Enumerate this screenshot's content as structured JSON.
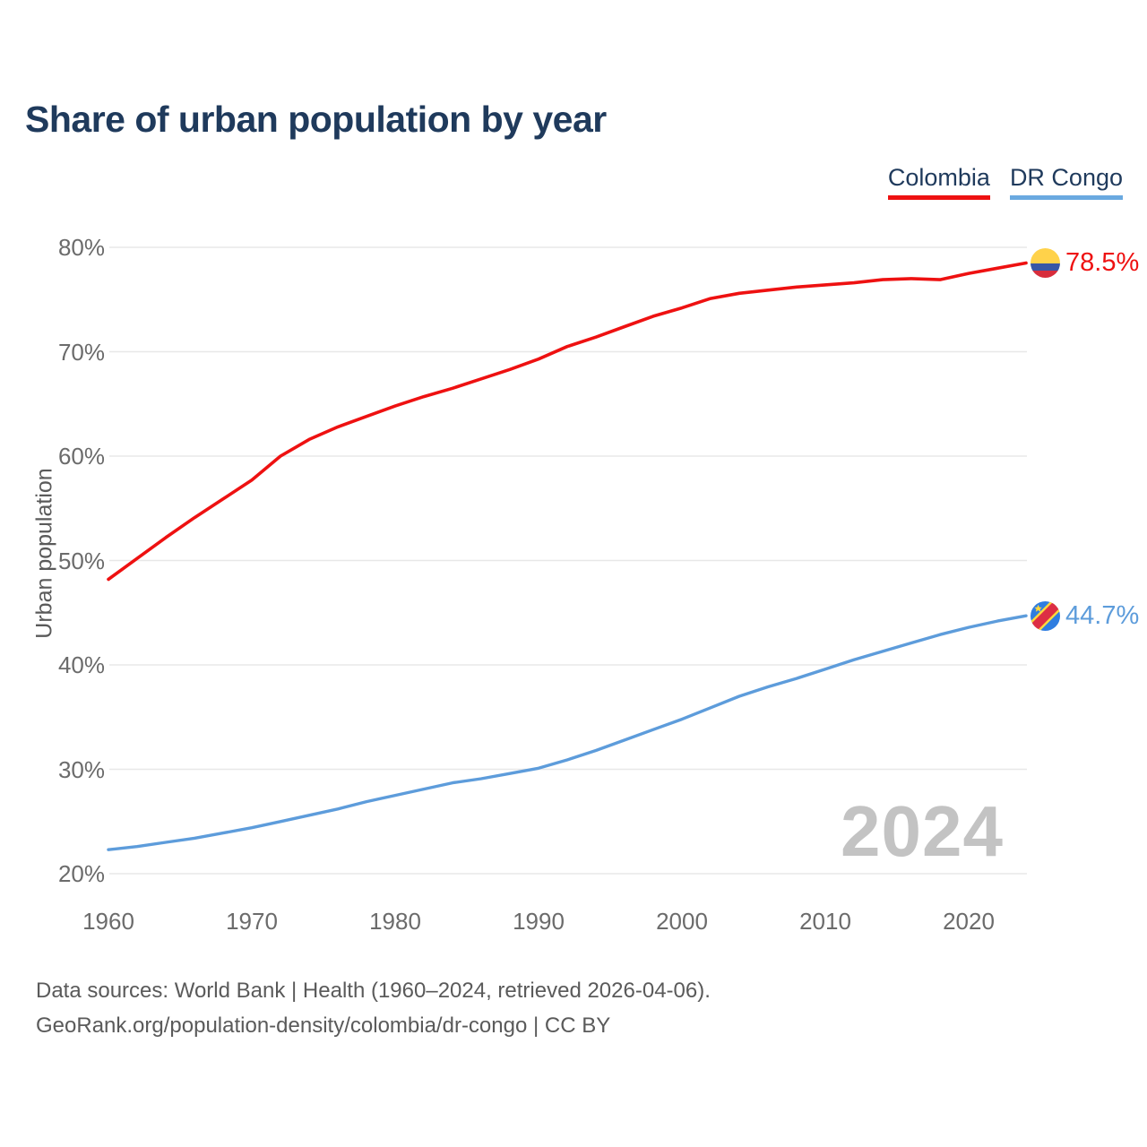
{
  "title": "Share of urban population by year",
  "ylabel": "Urban population",
  "watermark": "2024",
  "legend": [
    {
      "label": "Colombia",
      "color": "#ee1111"
    },
    {
      "label": "DR Congo",
      "color": "#6aa9e0"
    }
  ],
  "end_labels": {
    "colombia": "78.5%",
    "dr_congo": "44.7%"
  },
  "footer": {
    "line1": "Data sources: World Bank | Health (1960–2024, retrieved 2026-04-06).",
    "line2": "GeoRank.org/population-density/colombia/dr-congo | CC BY"
  },
  "colors": {
    "colombia_line": "#ee1111",
    "dr_congo_line": "#5d9cdb",
    "title_navy": "#1f3a5c",
    "gridline": "#e8e8e8",
    "tick_gray": "#6b6b6b",
    "watermark_gray": "#c3c3c3"
  },
  "chart_data": {
    "type": "line",
    "title": "Share of urban population by year",
    "xlabel": "",
    "ylabel": "Urban population",
    "grid": "horizontal",
    "legend_position": "top-right",
    "ylim": [
      20,
      80
    ],
    "xlim": [
      1960,
      2024
    ],
    "y_ticks": [
      20,
      30,
      40,
      50,
      60,
      70,
      80
    ],
    "y_tick_suffix": "%",
    "x_ticks": [
      1960,
      1970,
      1980,
      1990,
      2000,
      2010,
      2020
    ],
    "x": [
      1960,
      1962,
      1964,
      1966,
      1968,
      1970,
      1972,
      1974,
      1976,
      1978,
      1980,
      1982,
      1984,
      1986,
      1988,
      1990,
      1992,
      1994,
      1996,
      1998,
      2000,
      2002,
      2004,
      2006,
      2008,
      2010,
      2012,
      2014,
      2016,
      2018,
      2020,
      2022,
      2024
    ],
    "series": [
      {
        "name": "Colombia",
        "color": "#ee1111",
        "stroke_width": 3.6,
        "end_label": "78.5%",
        "values": [
          48.2,
          50.2,
          52.2,
          54.1,
          55.9,
          57.7,
          60.0,
          61.6,
          62.8,
          63.8,
          64.8,
          65.7,
          66.5,
          67.4,
          68.3,
          69.3,
          70.5,
          71.4,
          72.4,
          73.4,
          74.2,
          75.1,
          75.6,
          75.9,
          76.2,
          76.4,
          76.6,
          76.9,
          77.0,
          76.9,
          77.5,
          78.0,
          78.5
        ]
      },
      {
        "name": "DR Congo",
        "color": "#5d9cdb",
        "stroke_width": 3.4,
        "end_label": "44.7%",
        "values": [
          22.3,
          22.6,
          23.0,
          23.4,
          23.9,
          24.4,
          25.0,
          25.6,
          26.2,
          26.9,
          27.5,
          28.1,
          28.7,
          29.1,
          29.6,
          30.1,
          30.9,
          31.8,
          32.8,
          33.8,
          34.8,
          35.9,
          37.0,
          37.9,
          38.7,
          39.6,
          40.5,
          41.3,
          42.1,
          42.9,
          43.6,
          44.2,
          44.7
        ]
      }
    ]
  }
}
